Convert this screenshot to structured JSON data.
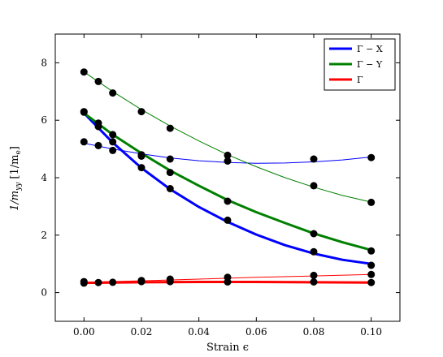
{
  "chart_data": {
    "type": "line",
    "xlabel": "Strain ϵ",
    "ylabel": "1/m_yy [1/m_e]",
    "xlim": [
      -0.01,
      0.11
    ],
    "ylim": [
      -1,
      9
    ],
    "xticks": [
      0.0,
      0.02,
      0.04,
      0.06,
      0.08,
      0.1
    ],
    "xtick_labels": [
      "0.00",
      "0.02",
      "0.04",
      "0.06",
      "0.08",
      "0.10"
    ],
    "yticks": [
      0,
      2,
      4,
      6,
      8
    ],
    "ytick_labels": [
      "0",
      "2",
      "4",
      "6",
      "8"
    ],
    "legend_position": "top-right",
    "grid": false,
    "series": [
      {
        "name": "Γ − X",
        "color": "#0000ff",
        "points": [
          {
            "x": 0.0,
            "y": 6.28
          },
          {
            "x": 0.005,
            "y": 5.78
          },
          {
            "x": 0.01,
            "y": 5.25
          },
          {
            "x": 0.02,
            "y": 4.35
          },
          {
            "x": 0.03,
            "y": 3.62
          },
          {
            "x": 0.05,
            "y": 2.52
          },
          {
            "x": 0.08,
            "y": 1.42
          },
          {
            "x": 0.1,
            "y": 0.95
          }
        ],
        "fit": [
          {
            "x": 0.0,
            "y": 6.25
          },
          {
            "x": 0.01,
            "y": 5.22
          },
          {
            "x": 0.02,
            "y": 4.34
          },
          {
            "x": 0.03,
            "y": 3.6
          },
          {
            "x": 0.04,
            "y": 2.98
          },
          {
            "x": 0.05,
            "y": 2.46
          },
          {
            "x": 0.06,
            "y": 2.02
          },
          {
            "x": 0.07,
            "y": 1.65
          },
          {
            "x": 0.08,
            "y": 1.36
          },
          {
            "x": 0.09,
            "y": 1.14
          },
          {
            "x": 0.1,
            "y": 1.0
          }
        ]
      },
      {
        "name": "Γ − Y",
        "color": "#008000",
        "points": [
          {
            "x": 0.0,
            "y": 6.3
          },
          {
            "x": 0.005,
            "y": 5.9
          },
          {
            "x": 0.01,
            "y": 5.5
          },
          {
            "x": 0.02,
            "y": 4.8
          },
          {
            "x": 0.03,
            "y": 4.18
          },
          {
            "x": 0.05,
            "y": 3.18
          },
          {
            "x": 0.08,
            "y": 2.05
          },
          {
            "x": 0.1,
            "y": 1.45
          }
        ],
        "fit": [
          {
            "x": 0.0,
            "y": 6.25
          },
          {
            "x": 0.01,
            "y": 5.5
          },
          {
            "x": 0.02,
            "y": 4.85
          },
          {
            "x": 0.03,
            "y": 4.25
          },
          {
            "x": 0.04,
            "y": 3.72
          },
          {
            "x": 0.05,
            "y": 3.22
          },
          {
            "x": 0.06,
            "y": 2.8
          },
          {
            "x": 0.07,
            "y": 2.42
          },
          {
            "x": 0.08,
            "y": 2.06
          },
          {
            "x": 0.09,
            "y": 1.75
          },
          {
            "x": 0.1,
            "y": 1.48
          }
        ]
      },
      {
        "name": "Γ",
        "color": "#ff0000",
        "points": [
          {
            "x": 0.0,
            "y": 0.33
          },
          {
            "x": 0.005,
            "y": 0.35
          },
          {
            "x": 0.01,
            "y": 0.36
          },
          {
            "x": 0.02,
            "y": 0.38
          },
          {
            "x": 0.03,
            "y": 0.38
          },
          {
            "x": 0.05,
            "y": 0.37
          },
          {
            "x": 0.08,
            "y": 0.37
          },
          {
            "x": 0.1,
            "y": 0.35
          }
        ],
        "fit": [
          {
            "x": 0.0,
            "y": 0.34
          },
          {
            "x": 0.02,
            "y": 0.36
          },
          {
            "x": 0.04,
            "y": 0.37
          },
          {
            "x": 0.06,
            "y": 0.37
          },
          {
            "x": 0.08,
            "y": 0.36
          },
          {
            "x": 0.1,
            "y": 0.35
          }
        ]
      }
    ],
    "extra_series": [
      {
        "color": "#0000ff",
        "points": [
          {
            "x": 0.0,
            "y": 5.25
          },
          {
            "x": 0.005,
            "y": 5.12
          },
          {
            "x": 0.01,
            "y": 4.95
          },
          {
            "x": 0.02,
            "y": 4.75
          },
          {
            "x": 0.03,
            "y": 4.65
          },
          {
            "x": 0.05,
            "y": 4.58
          },
          {
            "x": 0.08,
            "y": 4.65
          },
          {
            "x": 0.1,
            "y": 4.7
          }
        ],
        "fit": [
          {
            "x": 0.0,
            "y": 5.2
          },
          {
            "x": 0.01,
            "y": 5.0
          },
          {
            "x": 0.02,
            "y": 4.83
          },
          {
            "x": 0.03,
            "y": 4.69
          },
          {
            "x": 0.04,
            "y": 4.59
          },
          {
            "x": 0.05,
            "y": 4.53
          },
          {
            "x": 0.06,
            "y": 4.5
          },
          {
            "x": 0.07,
            "y": 4.51
          },
          {
            "x": 0.08,
            "y": 4.55
          },
          {
            "x": 0.09,
            "y": 4.62
          },
          {
            "x": 0.1,
            "y": 4.72
          }
        ]
      },
      {
        "color": "#008000",
        "points": [
          {
            "x": 0.0,
            "y": 7.68
          },
          {
            "x": 0.005,
            "y": 7.35
          },
          {
            "x": 0.01,
            "y": 6.95
          },
          {
            "x": 0.02,
            "y": 6.3
          },
          {
            "x": 0.03,
            "y": 5.72
          },
          {
            "x": 0.05,
            "y": 4.78
          },
          {
            "x": 0.08,
            "y": 3.72
          },
          {
            "x": 0.1,
            "y": 3.14
          }
        ],
        "fit": [
          {
            "x": 0.0,
            "y": 7.68
          },
          {
            "x": 0.01,
            "y": 7.0
          },
          {
            "x": 0.02,
            "y": 6.37
          },
          {
            "x": 0.03,
            "y": 5.8
          },
          {
            "x": 0.04,
            "y": 5.28
          },
          {
            "x": 0.05,
            "y": 4.8
          },
          {
            "x": 0.06,
            "y": 4.38
          },
          {
            "x": 0.07,
            "y": 4.0
          },
          {
            "x": 0.08,
            "y": 3.67
          },
          {
            "x": 0.09,
            "y": 3.38
          },
          {
            "x": 0.1,
            "y": 3.15
          }
        ]
      },
      {
        "color": "#ff0000",
        "points": [
          {
            "x": 0.0,
            "y": 0.38
          },
          {
            "x": 0.02,
            "y": 0.42
          },
          {
            "x": 0.03,
            "y": 0.47
          },
          {
            "x": 0.05,
            "y": 0.53
          },
          {
            "x": 0.08,
            "y": 0.6
          },
          {
            "x": 0.1,
            "y": 0.63
          }
        ],
        "fit": [
          {
            "x": 0.0,
            "y": 0.36
          },
          {
            "x": 0.02,
            "y": 0.41
          },
          {
            "x": 0.04,
            "y": 0.47
          },
          {
            "x": 0.06,
            "y": 0.53
          },
          {
            "x": 0.08,
            "y": 0.58
          },
          {
            "x": 0.1,
            "y": 0.63
          }
        ]
      }
    ]
  }
}
